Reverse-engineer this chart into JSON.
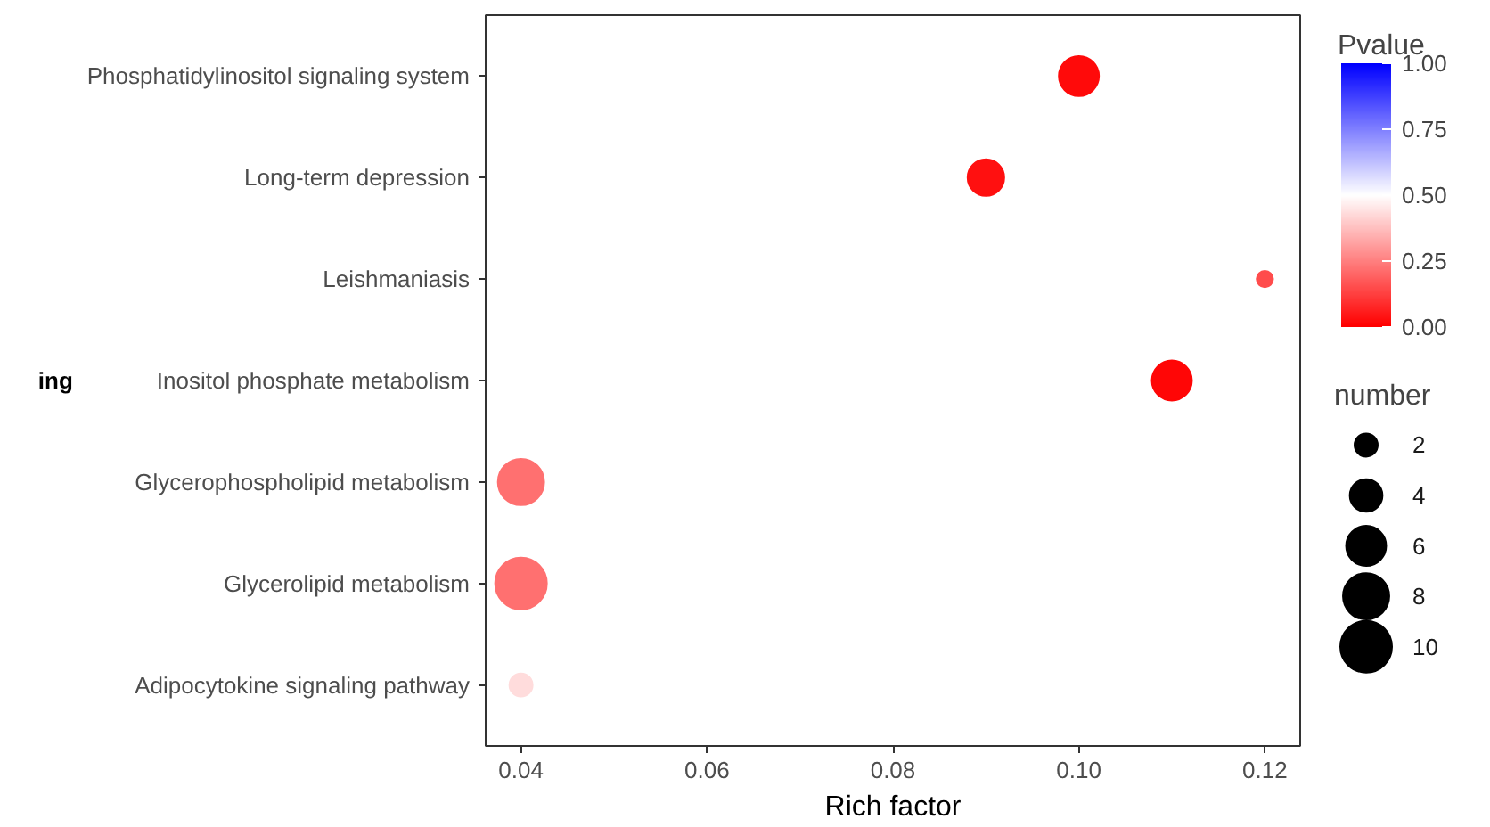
{
  "chart_data": {
    "type": "bubble",
    "orientation": "horizontal",
    "xlabel": "Rich factor",
    "ylabel": "ing",
    "legend_title": "number",
    "clabel": "Pvalue",
    "categories": [
      "Phosphatidylinositol signaling system",
      "Long-term depression",
      "Leishmaniasis",
      "Inositol phosphate metabolism",
      "Glycerophospholipid metabolism",
      "Glycerolipid metabolism",
      "Adipocytokine signaling pathway"
    ],
    "values": [
      0.1,
      0.09,
      0.12,
      0.11,
      0.04,
      0.04,
      0.04
    ],
    "sizes": [
      6,
      5,
      1,
      6,
      8,
      10,
      2
    ],
    "cvalues": [
      0.02,
      0.03,
      0.15,
      0.01,
      0.22,
      0.22,
      0.43
    ],
    "size_legend": [
      2,
      4,
      6,
      8,
      10
    ],
    "clim": [
      0,
      1
    ],
    "cticks": [
      {
        "value": 0,
        "label": "0.00"
      },
      {
        "value": 0.25,
        "label": "0.25"
      },
      {
        "value": 0.5,
        "label": "0.50"
      },
      {
        "value": 0.75,
        "label": "0.75"
      },
      {
        "value": 1,
        "label": "1.00"
      }
    ],
    "xlim": [
      0.0362,
      0.1238
    ],
    "xticks": [
      {
        "value": 0.04,
        "label": "0.04"
      },
      {
        "value": 0.06,
        "label": "0.06"
      },
      {
        "value": 0.08,
        "label": "0.08"
      },
      {
        "value": 0.1,
        "label": "0.10"
      },
      {
        "value": 0.12,
        "label": "0.12"
      }
    ],
    "grid": false
  }
}
